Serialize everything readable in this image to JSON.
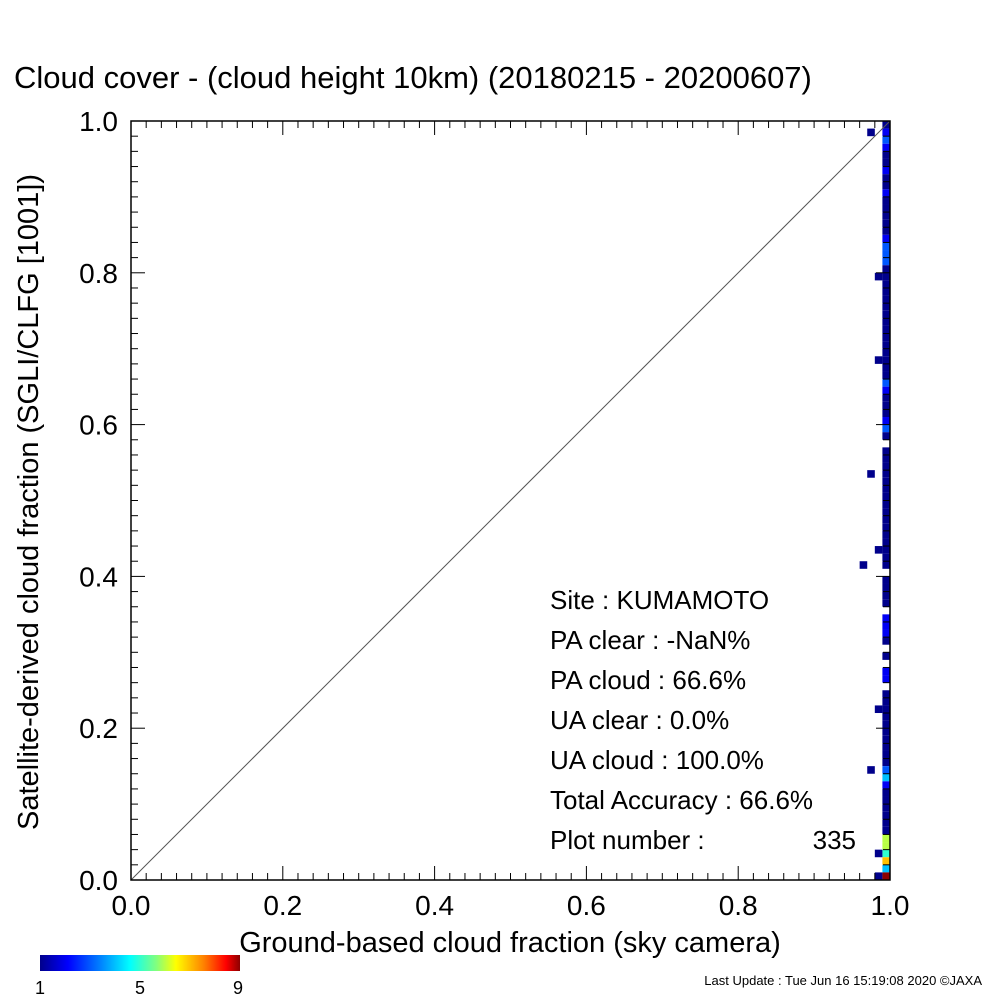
{
  "chart_data": {
    "type": "heatmap",
    "title": "Cloud cover - (cloud height 10km)  (20180215 - 20200607)",
    "xlabel": "Ground-based cloud fraction (sky camera)",
    "ylabel": "Satellite-derived cloud fraction (SGLI/CLFG [1001])",
    "xlim": [
      0.0,
      1.0
    ],
    "ylim": [
      0.0,
      1.0
    ],
    "x_tick_labels": [
      "0.0",
      "0.2",
      "0.4",
      "0.6",
      "0.8",
      "1.0"
    ],
    "y_tick_labels": [
      "0.0",
      "0.2",
      "0.4",
      "0.6",
      "0.8",
      "1.0"
    ],
    "reference_line": "y = x",
    "colorbar": {
      "min": 1,
      "max": 9,
      "tick_labels": [
        "1",
        "5",
        "9"
      ]
    },
    "bin_width": 0.01,
    "cells_x1": [
      [
        0.99,
        1
      ],
      [
        0.98,
        2
      ],
      [
        0.97,
        3
      ],
      [
        0.96,
        2
      ],
      [
        0.95,
        1
      ],
      [
        0.94,
        1
      ],
      [
        0.93,
        2
      ],
      [
        0.92,
        1
      ],
      [
        0.91,
        1
      ],
      [
        0.9,
        2
      ],
      [
        0.89,
        1
      ],
      [
        0.88,
        1
      ],
      [
        0.87,
        1
      ],
      [
        0.86,
        1
      ],
      [
        0.85,
        1
      ],
      [
        0.84,
        2
      ],
      [
        0.83,
        3
      ],
      [
        0.82,
        3
      ],
      [
        0.81,
        3
      ],
      [
        0.8,
        1
      ],
      [
        0.79,
        1
      ],
      [
        0.78,
        1
      ],
      [
        0.77,
        1
      ],
      [
        0.76,
        1
      ],
      [
        0.75,
        1
      ],
      [
        0.74,
        1
      ],
      [
        0.73,
        1
      ],
      [
        0.72,
        1
      ],
      [
        0.71,
        1
      ],
      [
        0.7,
        1
      ],
      [
        0.69,
        1
      ],
      [
        0.68,
        1
      ],
      [
        0.67,
        1
      ],
      [
        0.66,
        1
      ],
      [
        0.65,
        3
      ],
      [
        0.64,
        2
      ],
      [
        0.63,
        1
      ],
      [
        0.62,
        1
      ],
      [
        0.61,
        1
      ],
      [
        0.6,
        2
      ],
      [
        0.59,
        3
      ],
      [
        0.58,
        1
      ],
      [
        0.56,
        1
      ],
      [
        0.55,
        1
      ],
      [
        0.54,
        1
      ],
      [
        0.53,
        1
      ],
      [
        0.52,
        1
      ],
      [
        0.51,
        1
      ],
      [
        0.5,
        1
      ],
      [
        0.49,
        1
      ],
      [
        0.48,
        1
      ],
      [
        0.47,
        1
      ],
      [
        0.46,
        1
      ],
      [
        0.45,
        1
      ],
      [
        0.44,
        1
      ],
      [
        0.43,
        1
      ],
      [
        0.42,
        1
      ],
      [
        0.41,
        1
      ],
      [
        0.39,
        1
      ],
      [
        0.38,
        1
      ],
      [
        0.37,
        1
      ],
      [
        0.36,
        1
      ],
      [
        0.34,
        2
      ],
      [
        0.33,
        2
      ],
      [
        0.32,
        2
      ],
      [
        0.31,
        1
      ],
      [
        0.29,
        1
      ],
      [
        0.27,
        2
      ],
      [
        0.26,
        2
      ],
      [
        0.24,
        1
      ],
      [
        0.23,
        1
      ],
      [
        0.22,
        1
      ],
      [
        0.21,
        1
      ],
      [
        0.2,
        1
      ],
      [
        0.19,
        1
      ],
      [
        0.18,
        1
      ],
      [
        0.17,
        1
      ],
      [
        0.16,
        1
      ],
      [
        0.15,
        1
      ],
      [
        0.14,
        3
      ],
      [
        0.13,
        4
      ],
      [
        0.12,
        2
      ],
      [
        0.11,
        1
      ],
      [
        0.1,
        1
      ],
      [
        0.09,
        1
      ],
      [
        0.08,
        1
      ],
      [
        0.07,
        1
      ],
      [
        0.06,
        1
      ],
      [
        0.05,
        6
      ],
      [
        0.04,
        6
      ],
      [
        0.03,
        5
      ],
      [
        0.02,
        7
      ],
      [
        0.01,
        4
      ],
      [
        0.0,
        9
      ]
    ],
    "cells_other": [
      [
        0.97,
        0.98,
        1
      ],
      [
        0.96,
        0.41,
        1
      ],
      [
        0.97,
        0.53,
        1
      ],
      [
        0.98,
        0.43,
        1
      ],
      [
        0.98,
        0.68,
        1
      ],
      [
        0.98,
        0.79,
        1
      ],
      [
        0.98,
        0.22,
        1
      ],
      [
        0.97,
        0.14,
        1
      ],
      [
        0.98,
        0.03,
        1
      ],
      [
        0.98,
        0.0,
        1
      ]
    ],
    "stats": {
      "site": "Site : KUMAMOTO",
      "pa_clear": "PA clear :  -NaN%",
      "pa_cloud": "PA cloud :  66.6%",
      "ua_clear": "UA clear :   0.0%",
      "ua_cloud": "UA cloud : 100.0%",
      "total_accuracy": "Total Accuracy :  66.6%",
      "plot_number_label": "Plot number :",
      "plot_number_value": "335"
    },
    "footer": "Last Update : Tue Jun 16 15:19:08 2020  ©JAXA"
  }
}
